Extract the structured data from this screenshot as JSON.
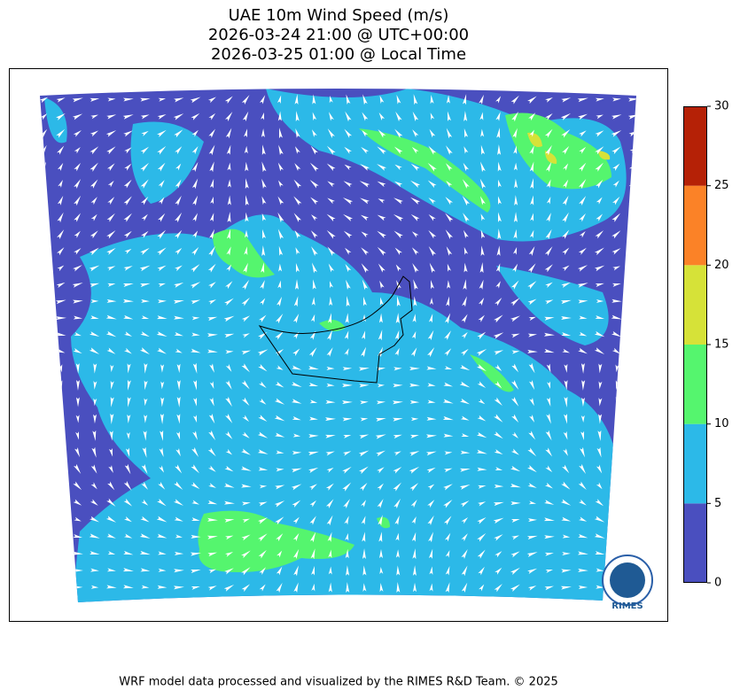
{
  "title": [
    "UAE 10m Wind Speed (m/s)",
    "2026-03-24 21:00 @ UTC+00:00",
    "2026-03-25 01:00 @ Local Time"
  ],
  "colorbar": {
    "ticks": [
      0,
      5,
      10,
      15,
      20,
      25,
      30
    ],
    "colors": [
      "#4a4fbf",
      "#2cb9e8",
      "#55f56e",
      "#d6e238",
      "#fb8227",
      "#b52106"
    ]
  },
  "logo": "RIMES",
  "footer": "WRF model data processed and visualized by the RIMES R&D Team. © 2025"
}
